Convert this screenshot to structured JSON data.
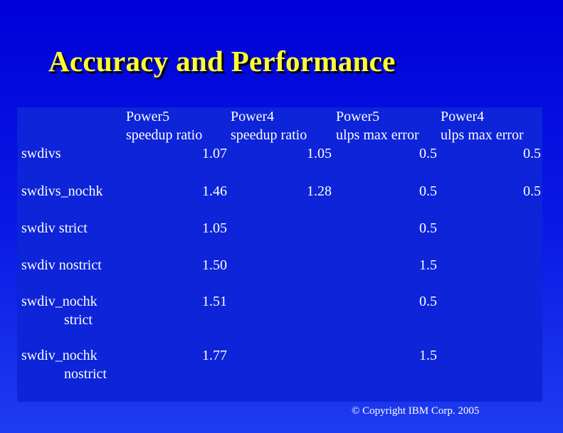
{
  "title": "Accuracy and Performance",
  "table": {
    "headers": [
      [
        "Power5",
        "speedup ratio"
      ],
      [
        "Power4",
        "speedup ratio"
      ],
      [
        "Power5",
        "ulps max error"
      ],
      [
        "Power4",
        "ulps max error"
      ]
    ],
    "rows": [
      {
        "label": [
          "swdivs"
        ],
        "values": [
          "1.07",
          "1.05",
          "0.5",
          "0.5"
        ]
      },
      {
        "label": [
          "swdivs_nochk"
        ],
        "values": [
          "1.46",
          "1.28",
          "0.5",
          "0.5"
        ]
      },
      {
        "label": [
          "swdiv strict"
        ],
        "values": [
          "1.05",
          "",
          "0.5",
          ""
        ]
      },
      {
        "label": [
          "swdiv nostrict"
        ],
        "values": [
          "1.50",
          "",
          "1.5",
          ""
        ]
      },
      {
        "label": [
          "swdiv_nochk",
          "strict"
        ],
        "values": [
          "1.51",
          "",
          "0.5",
          ""
        ]
      },
      {
        "label": [
          "swdiv_nochk",
          "nostrict"
        ],
        "values": [
          "1.77",
          "",
          "1.5",
          ""
        ]
      }
    ]
  },
  "footer": {
    "copyright": "© Copyright IBM Corp. 2005"
  },
  "colors": {
    "background": "#0a1be6",
    "panel": "#0d24d9",
    "title": "#ffff33",
    "text": "#ffffff"
  }
}
